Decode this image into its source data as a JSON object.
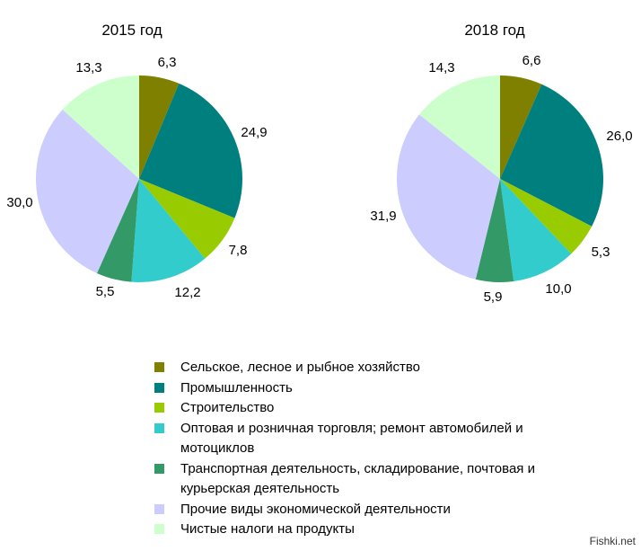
{
  "chart_data": [
    {
      "type": "pie",
      "title": "2015 год",
      "labels": [
        "Сельское, лесное и рыбное хозяйство",
        "Промышленность",
        "Строительство",
        "Оптовая и розничная торговля; ремонт автомобилей и мотоциклов",
        "Транспортная деятельность, складирование, почтовая и курьерская деятельность",
        "Прочие виды экономической деятельности",
        "Чистые налоги на продукты"
      ],
      "values": [
        6.3,
        24.9,
        7.8,
        12.2,
        5.5,
        30.0,
        13.3
      ],
      "value_labels": [
        "6,3",
        "24,9",
        "7,8",
        "12,2",
        "5,5",
        "30,0",
        "13,3"
      ]
    },
    {
      "type": "pie",
      "title": "2018 год",
      "labels": [
        "Сельское, лесное и рыбное хозяйство",
        "Промышленность",
        "Строительство",
        "Оптовая и розничная торговля; ремонт автомобилей и мотоциклов",
        "Транспортная деятельность, складирование, почтовая и курьерская деятельность",
        "Прочие виды экономической деятельности",
        "Чистые налоги на продукты"
      ],
      "values": [
        6.6,
        26.0,
        5.3,
        10.0,
        5.9,
        31.9,
        14.3
      ],
      "value_labels": [
        "6,6",
        "26,0",
        "5,3",
        "10,0",
        "5,9",
        "31,9",
        "14,3"
      ]
    }
  ],
  "colors": [
    "#7f7f00",
    "#007f7f",
    "#99cc00",
    "#33cccc",
    "#339966",
    "#ccccff",
    "#ccffcc"
  ],
  "legend": {
    "placement": "bottom",
    "items": [
      "Сельское, лесное и рыбное хозяйство",
      "Промышленность",
      "Строительство",
      "Оптовая и розничная торговля; ремонт автомобилей и мотоциклов",
      "Транспортная деятельность, складирование, почтовая и курьерская деятельность",
      "Прочие виды экономической деятельности",
      "Чистые налоги на продукты"
    ]
  },
  "watermark": "Fishki.net"
}
